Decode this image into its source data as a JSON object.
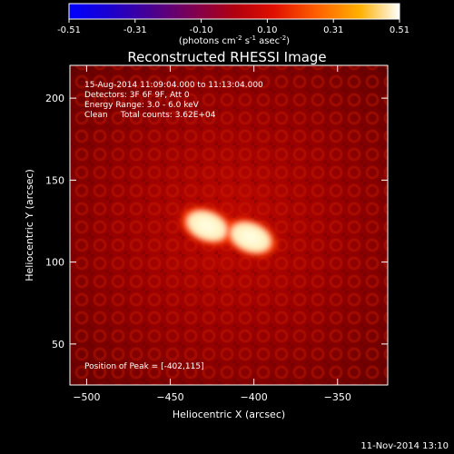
{
  "chart_data": {
    "type": "heatmap",
    "title": "Reconstructed RHESSI Image",
    "xlabel": "Heliocentric X (arcsec)",
    "ylabel": "Heliocentric Y (arcsec)",
    "xlim": [
      -510,
      -320
    ],
    "ylim": [
      25,
      220
    ],
    "x_ticks": [
      -500,
      -450,
      -400,
      -350
    ],
    "y_ticks": [
      50,
      100,
      150,
      200
    ],
    "colorbar": {
      "min": -0.51,
      "max": 0.51,
      "ticks": [
        "-0.51",
        "-0.31",
        "-0.10",
        "0.10",
        "0.31",
        "0.51"
      ],
      "unit_label": "(photons cm",
      "unit_sup1": "-2",
      "unit_mid": " s",
      "unit_sup2": "-1",
      "unit_end": " asec",
      "unit_sup3": "-2",
      "unit_close": ")"
    },
    "annotations": [
      "15-Aug-2014 11:09:04.000 to 11:13:04.000",
      "Detectors: 3F 6F 9F, Att 0",
      "Energy Range: 3.0 - 6.0 keV",
      "Clean     Total counts: 3.62E+04"
    ],
    "peak_label": "Position of Peak = [-402,115]",
    "sources": [
      {
        "x": -428,
        "y": 122,
        "value": 0.51
      },
      {
        "x": -402,
        "y": 115,
        "value": 0.51
      }
    ],
    "background_level": 0.1
  },
  "footer": {
    "timestamp": "11-Nov-2014 13:10"
  }
}
